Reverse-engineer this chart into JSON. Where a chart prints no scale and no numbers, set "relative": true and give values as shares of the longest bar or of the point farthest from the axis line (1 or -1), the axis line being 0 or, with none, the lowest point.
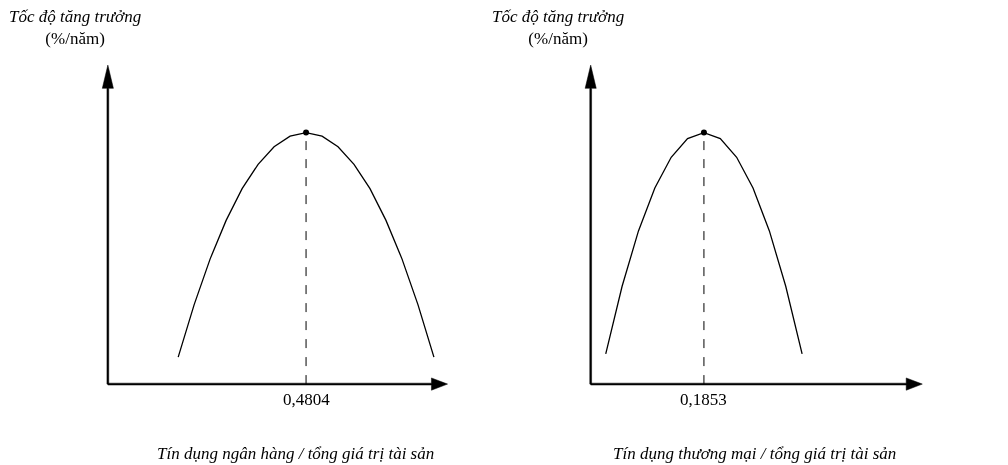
{
  "chart_data": [
    {
      "type": "line",
      "relative": true,
      "ylabel": "Tốc độ tăng trưởng\n(%/năm)",
      "xlabel": "Tín dụng ngân hàng / tổng giá trị tài sản",
      "categories": [
        null,
        null,
        null,
        null,
        null,
        null,
        null,
        null,
        null,
        null,
        null,
        null,
        null,
        null,
        null,
        null,
        null
      ],
      "annotations": [
        "0,4804"
      ],
      "series": [
        {
          "color": "#000000",
          "values": [
            0.107,
            0.316,
            0.498,
            0.651,
            0.777,
            0.874,
            0.944,
            0.986,
            1,
            0.986,
            0.944,
            0.874,
            0.777,
            0.651,
            0.498,
            0.316,
            0.107
          ]
        }
      ]
    },
    {
      "type": "line",
      "relative": true,
      "ylabel": "Tốc độ tăng trưởng\n(%/năm)",
      "xlabel": "Tín dụng thương mại / tổng giá trị tài sản",
      "categories": [
        null,
        null,
        null,
        null,
        null,
        null,
        null,
        null,
        null,
        null,
        null,
        null,
        null
      ],
      "annotations": [
        "0,1853"
      ],
      "series": [
        {
          "color": "#000000",
          "values": [
            0.12,
            0.389,
            0.609,
            0.78,
            0.902,
            0.976,
            1,
            0.976,
            0.902,
            0.78,
            0.609,
            0.389,
            0.12
          ]
        }
      ]
    }
  ]
}
